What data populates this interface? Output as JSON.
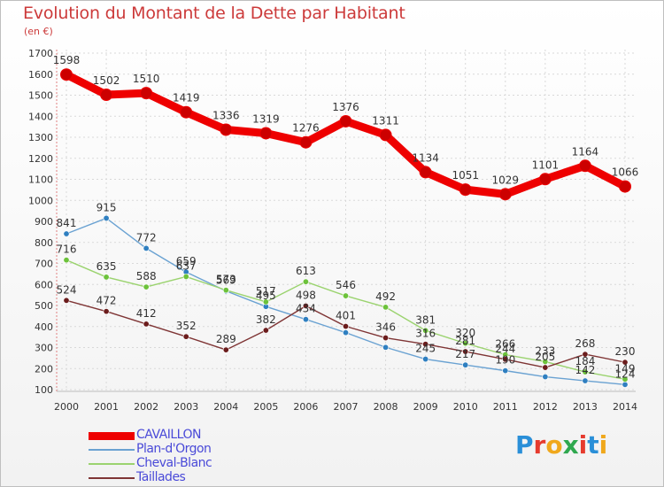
{
  "title": "Evolution du Montant de la Dette par Habitant",
  "subtitle": "(en €)",
  "logo": {
    "text": "Proxiti",
    "letter_colors": [
      "#2a8fd8",
      "#e63b2e",
      "#f0a81c",
      "#2fa84f",
      "#e63b2e",
      "#2a8fd8",
      "#f0a81c"
    ]
  },
  "chart_data": {
    "type": "line",
    "title": "Evolution du Montant de la Dette par Habitant",
    "subtitle": "(en €)",
    "x": [
      "2000",
      "2001",
      "2002",
      "2003",
      "2004",
      "2005",
      "2006",
      "2007",
      "2008",
      "2009",
      "2010",
      "2011",
      "2012",
      "2013",
      "2014"
    ],
    "ylim": [
      100,
      1700
    ],
    "yticks": [
      100,
      200,
      300,
      400,
      500,
      600,
      700,
      800,
      900,
      1000,
      1100,
      1200,
      1300,
      1400,
      1500,
      1600,
      1700
    ],
    "grid": true,
    "legend_position": "bottom-left",
    "series": [
      {
        "name": "CAVAILLON",
        "color": "#ee0000",
        "values": [
          1598,
          1502,
          1510,
          1419,
          1336,
          1319,
          1276,
          1376,
          1311,
          1134,
          1051,
          1029,
          1101,
          1164,
          1066
        ],
        "labels": [
          "1598",
          "1502",
          "1510",
          "1419",
          "1336",
          "1319",
          "1276",
          "1376",
          "1311",
          "1134",
          "1051",
          "1029",
          "1101",
          "1164",
          "1066"
        ]
      },
      {
        "name": "Plan-d'Orgon",
        "color": "#6aa2d2",
        "marker": "#2f7fc0",
        "values": [
          841,
          915,
          772,
          659,
          569,
          495,
          434,
          371,
          301,
          245,
          217,
          190,
          161,
          142,
          124
        ],
        "labels": [
          "841",
          "915",
          "772",
          "659",
          "569",
          "495",
          "434",
          "",
          "",
          "245",
          "217",
          "190",
          "",
          "142",
          "124"
        ]
      },
      {
        "name": "Cheval-Blanc",
        "color": "#9bd36f",
        "marker": "#6cc23a",
        "values": [
          716,
          635,
          588,
          637,
          573,
          517,
          613,
          546,
          492,
          381,
          320,
          266,
          233,
          184,
          149
        ],
        "labels": [
          "716",
          "635",
          "588",
          "637",
          "573",
          "517",
          "613",
          "546",
          "492",
          "381",
          "320",
          "266",
          "233",
          "184",
          "149"
        ]
      },
      {
        "name": "Taillades",
        "color": "#7f3535",
        "marker": "#6b1c1c",
        "values": [
          524,
          472,
          412,
          352,
          289,
          382,
          498,
          401,
          346,
          316,
          281,
          244,
          205,
          268,
          230
        ],
        "labels": [
          "524",
          "472",
          "412",
          "352",
          "289",
          "382",
          "498",
          "401",
          "346",
          "316",
          "281",
          "244",
          "205",
          "268",
          "230"
        ]
      }
    ]
  }
}
